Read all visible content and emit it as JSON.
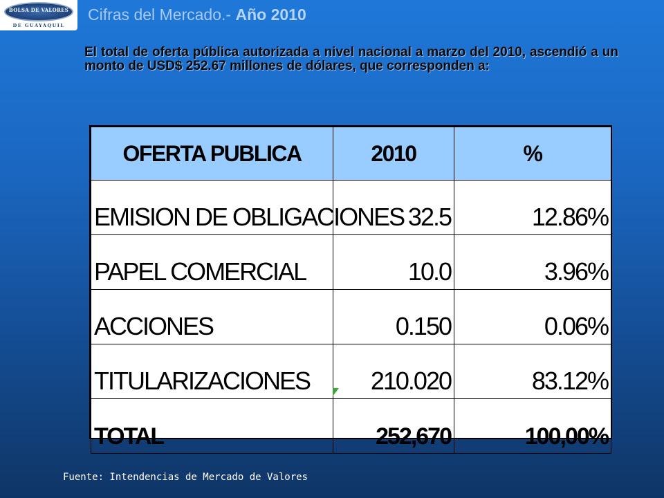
{
  "logo": {
    "text": "BOLSA DE VALORES",
    "subtext": "DE GUAYAQUIL"
  },
  "title": {
    "main": "Cifras del Mercado.- ",
    "year": "Año 2010"
  },
  "intro": "El total de oferta pública autorizada a nivel nacional a marzo del 2010, ascendió a un monto de USD$ 252.67 millones de dólares, que corresponden a:",
  "table": {
    "headers": [
      "OFERTA PUBLICA",
      "2010",
      "%"
    ],
    "rows": [
      {
        "name": "EMISION DE OBLIGACIONES",
        "value": "32.5",
        "pct": "12.86%"
      },
      {
        "name": "PAPEL COMERCIAL",
        "value": "10.0",
        "pct": "3.96%"
      },
      {
        "name": "ACCIONES",
        "value": "0.150",
        "pct": "0.06%"
      },
      {
        "name": "TITULARIZACIONES",
        "value": "210.020",
        "pct": "83.12%"
      }
    ],
    "total": {
      "name": "TOTAL",
      "value": "252,670",
      "pct": "100,00%"
    }
  },
  "source": "Fuente: Intendencias de Mercado de Valores",
  "colors": {
    "header_fill": "#99ccff",
    "title_color": "#a9c9f5",
    "background_top": "#1f78d8",
    "background_bottom": "#0f3566"
  }
}
